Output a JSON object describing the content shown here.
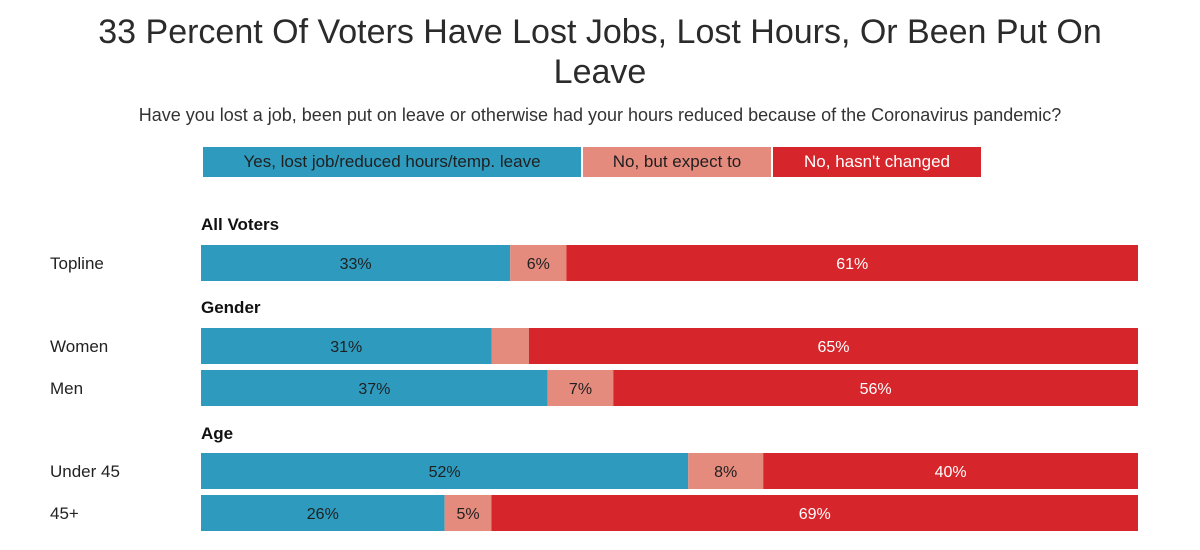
{
  "chart_data": {
    "type": "bar",
    "orientation": "horizontal-stacked-100",
    "title": "33 Percent Of Voters Have Lost Jobs, Lost Hours, Or Been Put On Leave",
    "subtitle": "Have you lost a job, been put on leave or otherwise had your hours reduced because of the Coronavirus pandemic?",
    "series": [
      {
        "name": "Yes, lost job/reduced hours/temp. leave",
        "color": "#2e9bbe"
      },
      {
        "name": "No, but expect to",
        "color": "#e48b7e"
      },
      {
        "name": "No, hasn't changed",
        "color": "#d7262b"
      }
    ],
    "legend_position": "top",
    "groups": [
      {
        "name": "All Voters",
        "rows": [
          {
            "label": "Topline",
            "values": [
              33,
              6,
              61
            ],
            "labels": [
              "33%",
              "6%",
              "61%"
            ]
          }
        ]
      },
      {
        "name": "Gender",
        "rows": [
          {
            "label": "Women",
            "values": [
              31,
              4,
              65
            ],
            "labels": [
              "31%",
              "",
              "65%"
            ]
          },
          {
            "label": "Men",
            "values": [
              37,
              7,
              56
            ],
            "labels": [
              "37%",
              "7%",
              "56%"
            ]
          }
        ]
      },
      {
        "name": "Age",
        "rows": [
          {
            "label": "Under 45",
            "values": [
              52,
              8,
              40
            ],
            "labels": [
              "52%",
              "8%",
              "40%"
            ]
          },
          {
            "label": "45+",
            "values": [
              26,
              5,
              69
            ],
            "labels": [
              "26%",
              "5%",
              "69%"
            ]
          }
        ]
      }
    ]
  }
}
